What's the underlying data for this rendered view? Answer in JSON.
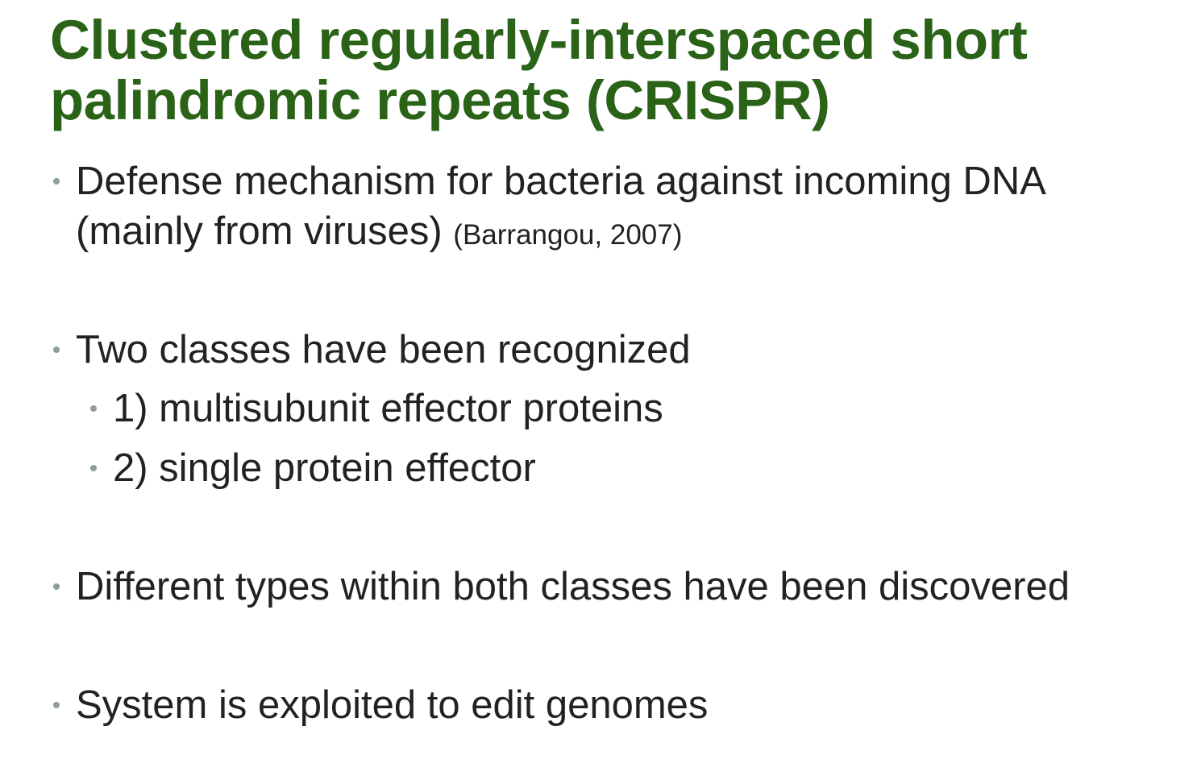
{
  "slide": {
    "title_line1": "Clustered regularly-interspaced short",
    "title_line2": "palindromic repeats (CRISPR)",
    "bullets": [
      {
        "line1": "Defense mechanism for bacteria against incoming DNA",
        "line2": "(mainly from viruses)",
        "citation": "(Barrangou, 2007)"
      },
      {
        "text": "Two classes have been recognized",
        "sub": [
          "1) multisubunit effector proteins",
          "2) single protein effector"
        ]
      },
      {
        "text": "Different types within both classes have been discovered"
      },
      {
        "text": "System is exploited to edit genomes"
      }
    ]
  },
  "colors": {
    "title": "#2a6317",
    "body_text": "#222225",
    "bullet_dot": "#8ea092"
  }
}
